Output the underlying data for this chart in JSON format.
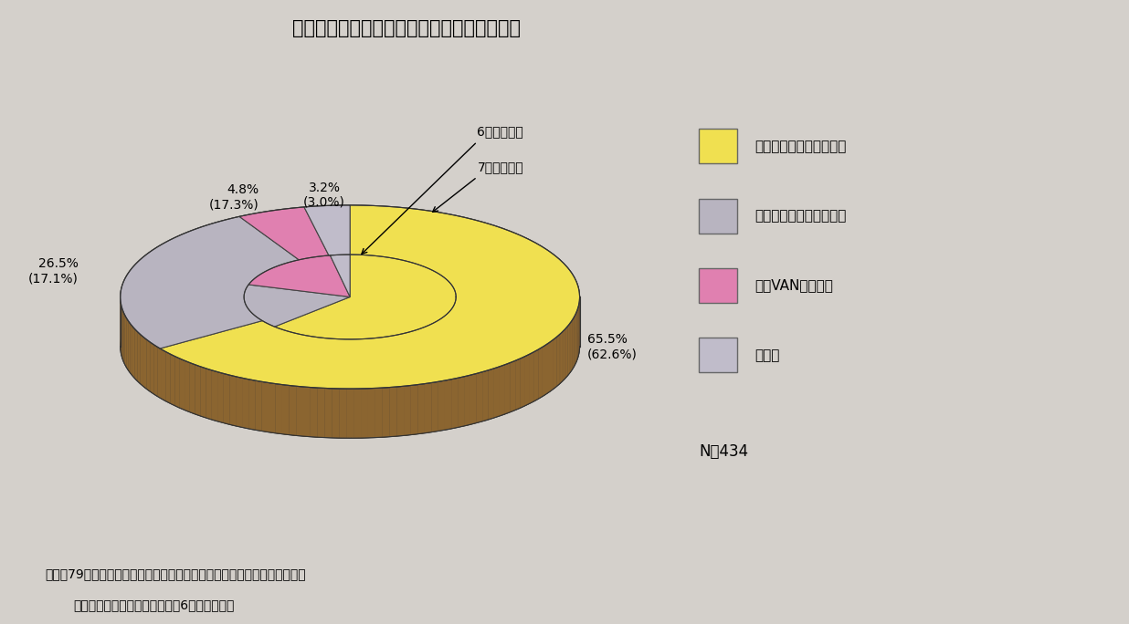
{
  "title": "第３－２－３図　電子メールの採用システム",
  "background_color": "#d4d0cb",
  "outer_values": [
    65.5,
    26.5,
    4.8,
    3.2
  ],
  "inner_values": [
    62.6,
    17.1,
    17.3,
    3.0
  ],
  "colors_top_outer": [
    "#f0e050",
    "#b8b4c0",
    "#e080b0",
    "#c0bcca"
  ],
  "colors_top_inner": [
    "#f0e050",
    "#b8b4c0",
    "#e080b0",
    "#c0bcca"
  ],
  "color_side_brown": "#8B6530",
  "color_side_dark": "#6B4818",
  "legend_colors": [
    "#f0e050",
    "#b8b4c0",
    "#e080b0",
    "#c0bcca"
  ],
  "legend_labels": [
    "自社に設置したシステム",
    "外部パソコン通信ネット",
    "外部VANセンター",
    "その他"
  ],
  "annotation_6": "6年調査結果",
  "annotation_7": "7年調査結果",
  "outer_label_texts": [
    "65.5%\n(62.6%)",
    "26.5%\n(17.1%)",
    "4.8%\n(17.3%)",
    "3.2%\n(3.0%)"
  ],
  "n_label": "N＝434",
  "footnote1": "「平成79年度通信利用動向調査（企業対象調査）」（郵政省）により作成",
  "footnote2": "（注）　（　　）内の数字は、6年調査結果。"
}
